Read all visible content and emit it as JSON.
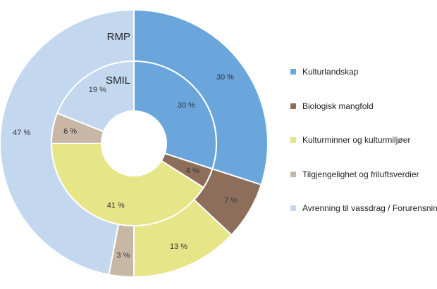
{
  "chart_data": {
    "type": "pie",
    "variant": "nested-donut",
    "categories": [
      "Kulturlandskap",
      "Biologisk mangfold",
      "Kulturminner og kulturmiljøer",
      "Tilgjengelighet og friluftsverdier",
      "Avrenning til vassdrag / Forurensning"
    ],
    "colors": [
      "#6aa6dc",
      "#8c6e5a",
      "#e6e587",
      "#c9b7a6",
      "#c3d8ee"
    ],
    "series": [
      {
        "name": "RMP",
        "ring": "outer",
        "values": [
          30,
          7,
          13,
          3,
          47
        ],
        "labels": [
          "30 %",
          "7 %",
          "13 %",
          "3 %",
          "47 %"
        ]
      },
      {
        "name": "SMIL",
        "ring": "inner",
        "values": [
          30,
          4,
          41,
          6,
          19
        ],
        "labels": [
          "30 %",
          "4 %",
          "41 %",
          "6 %",
          "19 %"
        ]
      }
    ],
    "legend_position": "right",
    "start_angle": "top",
    "direction": "clockwise"
  }
}
